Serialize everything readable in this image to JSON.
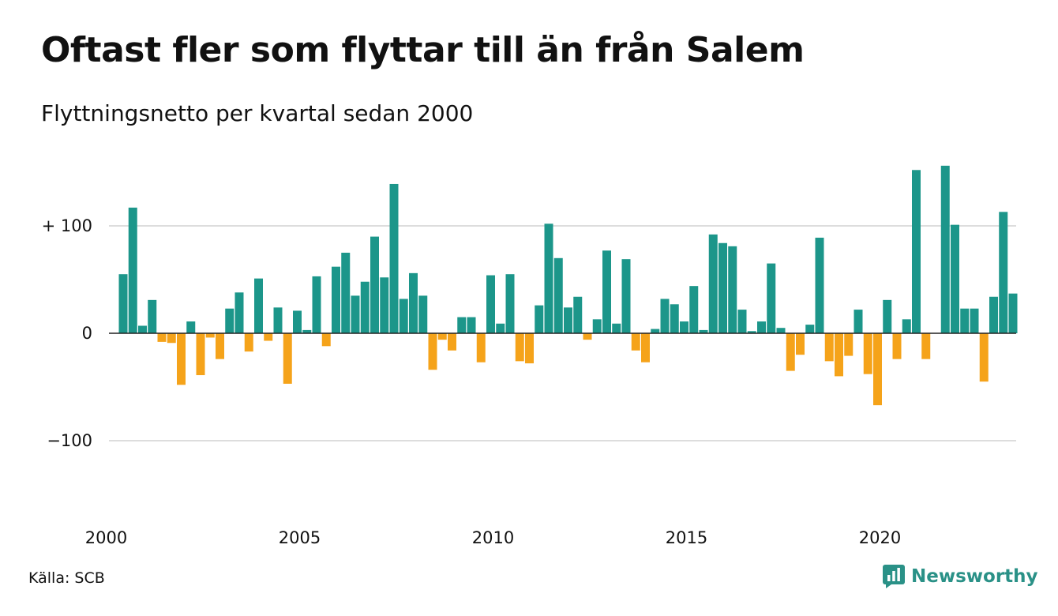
{
  "title": "Oftast fler som flyttar till än från Salem",
  "subtitle": "Flyttningsnetto per kvartal sedan 2000",
  "source": "Källa: SCB",
  "brand": {
    "name": "Newsworthy",
    "icon": "newsworthy-logo-icon",
    "color": "#2a9187"
  },
  "colors": {
    "positive": "#1c968a",
    "negative": "#f5a31a",
    "grid": "#dddddd",
    "zero_line": "#222222",
    "text": "#111111"
  },
  "chart_data": {
    "type": "bar",
    "x_unit": "quarter",
    "start_year": 2000,
    "x_ticks": [
      "2000",
      "2005",
      "2010",
      "2015",
      "2020"
    ],
    "y_ticks": [
      {
        "value": 100,
        "label": "+ 100"
      },
      {
        "value": 0,
        "label": "0"
      },
      {
        "value": -100,
        "label": "−100"
      }
    ],
    "ylim": [
      -160,
      160
    ],
    "grid": true,
    "values": [
      55,
      117,
      7,
      31,
      -8,
      -9,
      -48,
      11,
      -39,
      -4,
      -24,
      23,
      38,
      -17,
      51,
      -7,
      24,
      -47,
      21,
      3,
      53,
      -12,
      62,
      75,
      35,
      48,
      90,
      52,
      139,
      32,
      56,
      35,
      -34,
      -6,
      -16,
      15,
      15,
      -27,
      54,
      9,
      55,
      -26,
      -28,
      26,
      102,
      70,
      24,
      34,
      -6,
      13,
      77,
      9,
      69,
      -16,
      -27,
      4,
      32,
      27,
      11,
      44,
      3,
      92,
      84,
      81,
      22,
      2,
      11,
      65,
      5,
      -35,
      -20,
      8,
      89,
      -26,
      -40,
      -21,
      22,
      -38,
      -67,
      31,
      -24,
      13,
      152,
      -24,
      0,
      156,
      101,
      23,
      23,
      -45,
      34,
      113,
      37
    ]
  }
}
